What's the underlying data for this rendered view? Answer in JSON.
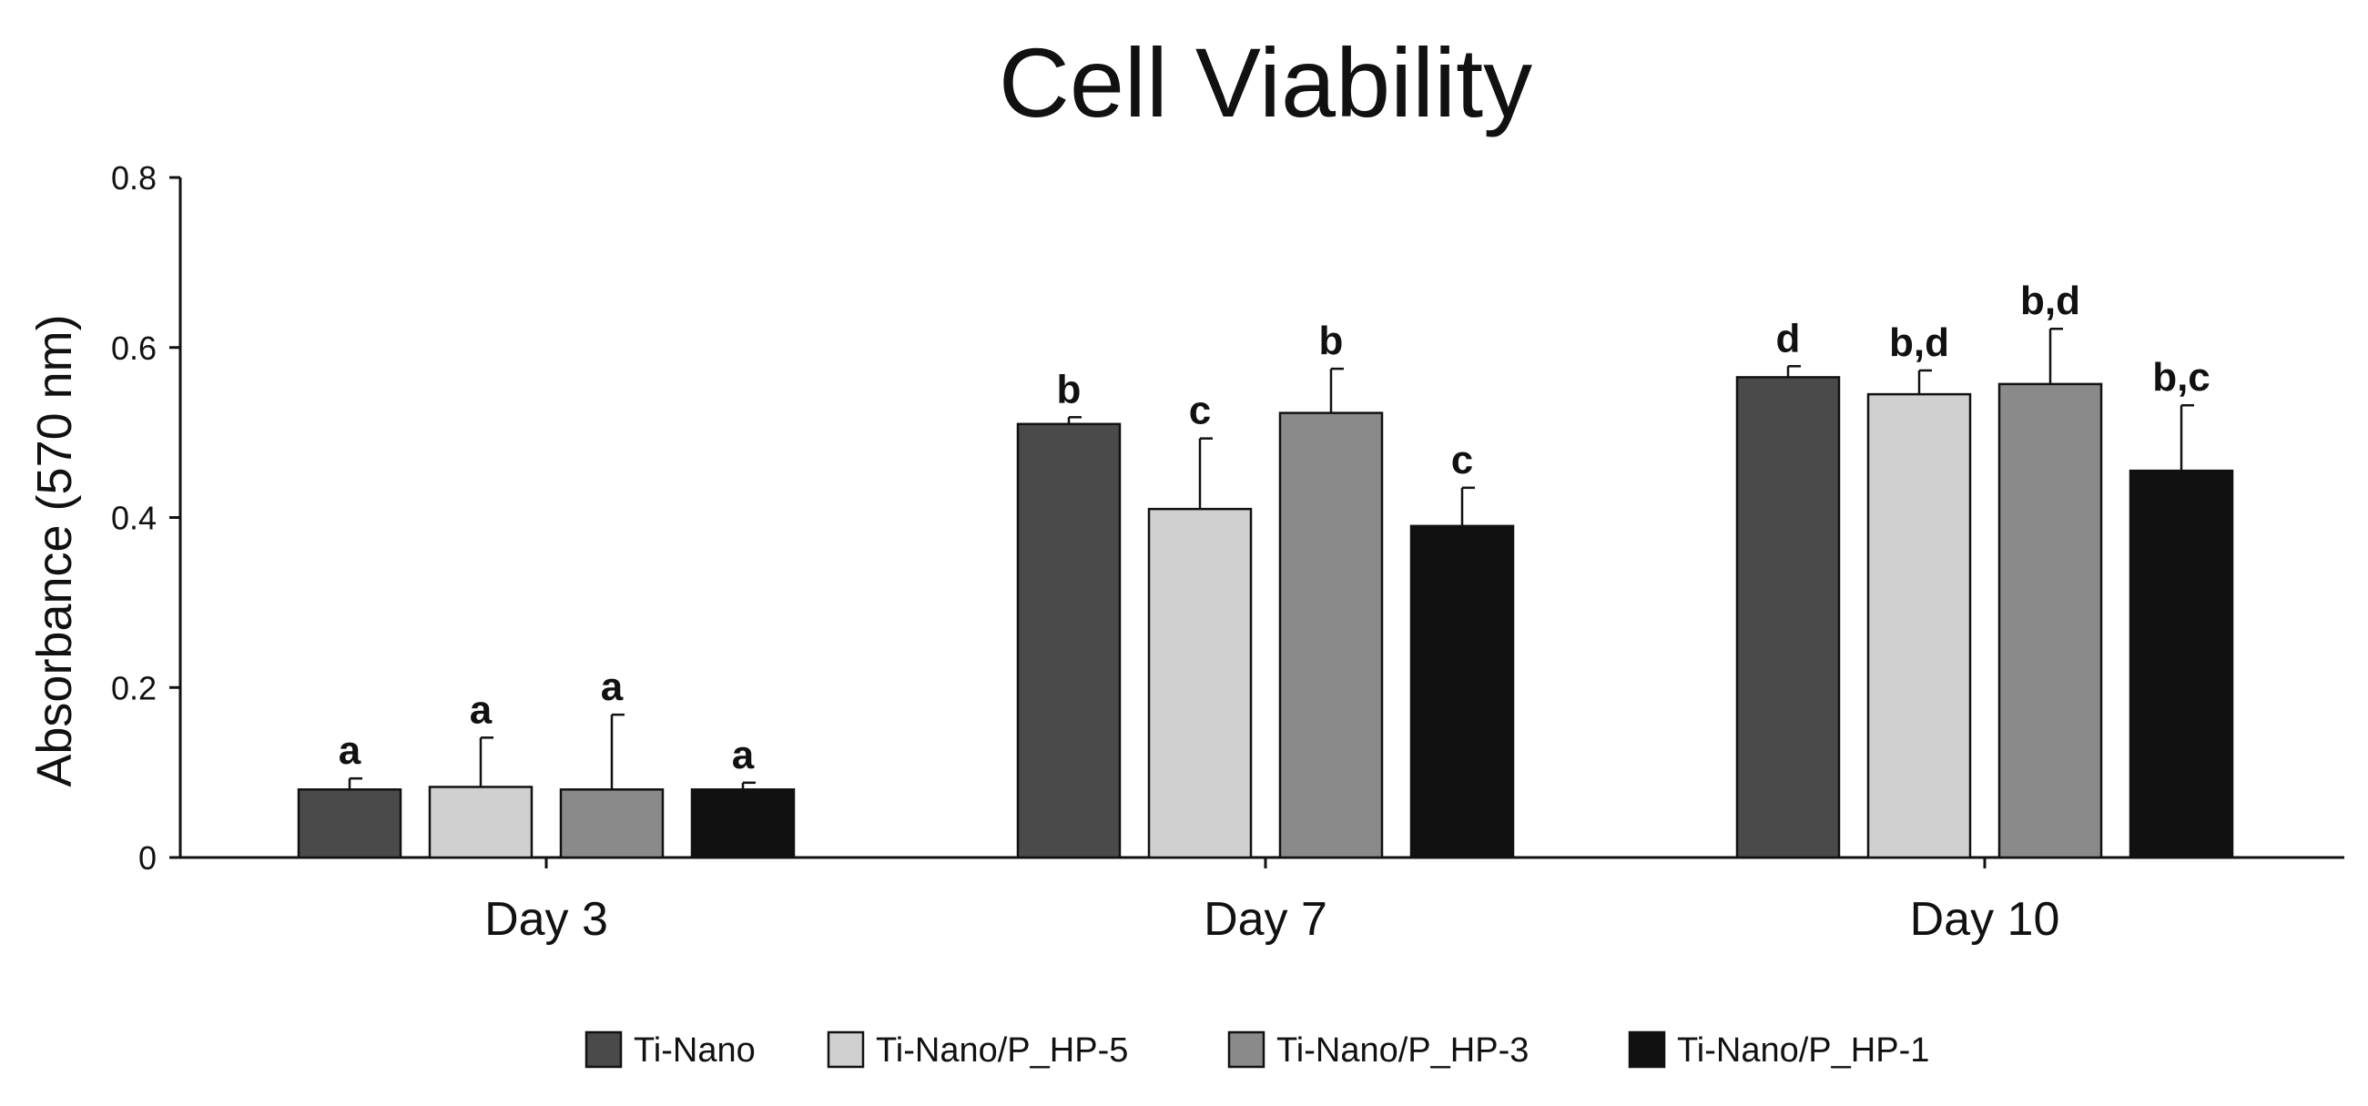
{
  "chart_data": {
    "type": "bar",
    "title": "Cell Viability",
    "xlabel": "",
    "ylabel": "Absorbance (570 nm)",
    "ylim": [
      0,
      0.8
    ],
    "yticks": [
      0,
      0.2,
      0.4,
      0.6,
      0.8
    ],
    "ytick_labels": [
      "0",
      "0.2",
      "0.4",
      "0.6",
      "0.8"
    ],
    "categories": [
      "Day 3",
      "Day 7",
      "Day 10"
    ],
    "grid": false,
    "legend_position": "bottom-center",
    "series": [
      {
        "name": "Ti-Nano",
        "color": "#4a4a4a",
        "values": [
          0.08,
          0.51,
          0.565
        ],
        "errors": [
          0.013,
          0.008,
          0.013
        ],
        "significance": [
          "a",
          "b",
          "d"
        ]
      },
      {
        "name": "Ti-Nano/P_HP-5",
        "color": "#d0d0d0",
        "values": [
          0.083,
          0.41,
          0.545
        ],
        "errors": [
          0.058,
          0.083,
          0.028
        ],
        "significance": [
          "a",
          "c",
          "b,d"
        ]
      },
      {
        "name": "Ti-Nano/P_HP-3",
        "color": "#8a8a8a",
        "values": [
          0.08,
          0.523,
          0.557
        ],
        "errors": [
          0.088,
          0.052,
          0.065
        ],
        "significance": [
          "a",
          "b",
          "b,d"
        ]
      },
      {
        "name": "Ti-Nano/P_HP-1",
        "color": "#111111",
        "values": [
          0.08,
          0.39,
          0.455
        ],
        "errors": [
          0.008,
          0.045,
          0.077
        ],
        "significance": [
          "a",
          "c",
          "b,c"
        ]
      }
    ]
  }
}
